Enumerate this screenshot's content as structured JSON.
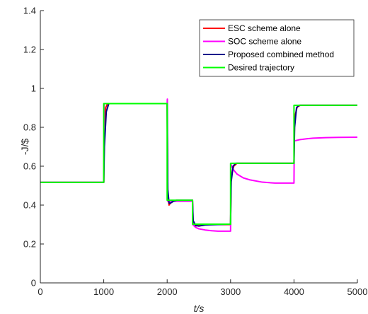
{
  "chart_data": {
    "type": "line",
    "xlabel": "t/s",
    "ylabel": "-J/$",
    "xlim": [
      0,
      5000
    ],
    "ylim": [
      0,
      1.4
    ],
    "xticks": [
      "0",
      "1000",
      "2000",
      "3000",
      "4000",
      "5000"
    ],
    "yticks": [
      "0",
      "0.2",
      "0.4",
      "0.6",
      "0.8",
      "1",
      "1.2",
      "1.4"
    ],
    "xtick_values": [
      0,
      1000,
      2000,
      3000,
      4000,
      5000
    ],
    "ytick_values": [
      0,
      0.2,
      0.4,
      0.6,
      0.8,
      1.0,
      1.2,
      1.4
    ],
    "grid": false,
    "legend_position": "top-right",
    "series": [
      {
        "name": "ESC scheme alone",
        "color": "#ff0000",
        "x": [
          0,
          1000,
          1010,
          1030,
          1060,
          2000,
          2010,
          2030,
          2050,
          2100,
          2150,
          2400,
          2410,
          2440,
          2500,
          3000,
          3010,
          3050,
          3100,
          4000,
          4010,
          4050,
          4100,
          5000
        ],
        "y": [
          0.517,
          0.517,
          0.8,
          0.9,
          0.922,
          0.922,
          0.45,
          0.4,
          0.41,
          0.42,
          0.425,
          0.425,
          0.3,
          0.29,
          0.3,
          0.3,
          0.55,
          0.6,
          0.615,
          0.615,
          0.85,
          0.905,
          0.913,
          0.913
        ]
      },
      {
        "name": "SOC scheme alone",
        "color": "#ff00ff",
        "x": [
          0,
          1000,
          1005,
          2000,
          2003,
          2008,
          2020,
          2050,
          2100,
          2400,
          2405,
          2450,
          2500,
          2600,
          2700,
          2800,
          3000,
          3005,
          3050,
          3100,
          3200,
          3300,
          3500,
          3700,
          4000,
          4005,
          4100,
          4200,
          4300,
          4500,
          4700,
          5000
        ],
        "y": [
          0.517,
          0.517,
          0.922,
          0.922,
          0.945,
          0.42,
          0.42,
          0.42,
          0.42,
          0.42,
          0.3,
          0.285,
          0.278,
          0.272,
          0.268,
          0.266,
          0.266,
          0.61,
          0.58,
          0.56,
          0.54,
          0.53,
          0.518,
          0.513,
          0.513,
          0.73,
          0.737,
          0.741,
          0.744,
          0.747,
          0.748,
          0.749
        ]
      },
      {
        "name": "Proposed combined method",
        "color": "#00008b",
        "x": [
          0,
          1000,
          1010,
          1040,
          1080,
          2000,
          2010,
          2030,
          2050,
          2100,
          2150,
          2400,
          2410,
          2450,
          2500,
          2600,
          3000,
          3010,
          3040,
          3080,
          4000,
          4010,
          4040,
          4080,
          5000
        ],
        "y": [
          0.517,
          0.517,
          0.7,
          0.88,
          0.922,
          0.922,
          0.48,
          0.41,
          0.41,
          0.42,
          0.425,
          0.425,
          0.32,
          0.295,
          0.292,
          0.298,
          0.302,
          0.52,
          0.6,
          0.615,
          0.615,
          0.8,
          0.9,
          0.913,
          0.913
        ]
      },
      {
        "name": "Desired trajectory",
        "color": "#00ff00",
        "x": [
          0,
          1000,
          1000,
          2000,
          2000,
          2400,
          2400,
          3000,
          3000,
          4000,
          4000,
          5000
        ],
        "y": [
          0.517,
          0.517,
          0.922,
          0.922,
          0.425,
          0.425,
          0.302,
          0.302,
          0.615,
          0.615,
          0.913,
          0.913
        ]
      }
    ]
  }
}
